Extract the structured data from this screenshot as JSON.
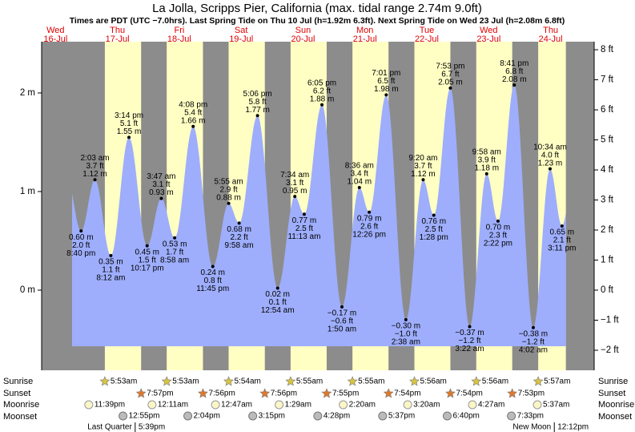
{
  "chart_data": {
    "type": "tide",
    "title": "La Jolla, Scripps Pier, California (max. tidal range 2.74m 9.0ft)",
    "subtitle": "Times are PDT (UTC −7.0hrs). Last Spring Tide on Thu 10 Jul (h=1.92m 6.3ft). Next Spring Tide on Wed 23 Jul (h=2.08m 6.8ft)",
    "ylim": [
      -0.813,
      2.52
    ],
    "yticks": [
      {
        "value": 0,
        "label": "0 m"
      },
      {
        "value": 1,
        "label": "1 m"
      },
      {
        "value": 2,
        "label": "2 m"
      }
    ],
    "y2lim": [
      -2.667,
      8.268
    ],
    "y2ticks": [
      {
        "value": -2,
        "label": "−2 ft"
      },
      {
        "value": -1,
        "label": "−1 ft"
      },
      {
        "value": 0,
        "label": "0 ft"
      },
      {
        "value": 1,
        "label": "1 ft"
      },
      {
        "value": 2,
        "label": "2 ft"
      },
      {
        "value": 3,
        "label": "3 ft"
      },
      {
        "value": 4,
        "label": "4 ft"
      },
      {
        "value": 5,
        "label": "5 ft"
      },
      {
        "value": 6,
        "label": "6 ft"
      },
      {
        "value": 7,
        "label": "7 ft"
      },
      {
        "value": 8,
        "label": "8 ft"
      }
    ],
    "row_labels": {
      "sunrise": "Sunrise",
      "sunset": "Sunset",
      "moonrise": "Moonrise",
      "moonset": "Moonset"
    },
    "colors": {
      "night": "#8c8c8c",
      "day": "#ffffc4",
      "tide": "#9eaefc"
    },
    "days": [
      {
        "weekday": "Wed",
        "date": "16-Jul",
        "moonrise": "11:39pm",
        "tides": [
          {
            "time": "8:40 pm",
            "value": 0.6,
            "value_label": "0.60 m",
            "ft_label": "2.0 ft"
          }
        ]
      },
      {
        "weekday": "Thu",
        "date": "17-Jul",
        "sunrise": "5:53am",
        "sunset": "7:57pm",
        "moonset": "12:55pm",
        "moon_phase": {
          "name": "Last Quarter",
          "time": "5:39pm"
        },
        "tides": [
          {
            "time": "2:03 am",
            "value": 1.12,
            "value_label": "1.12 m",
            "ft_label": "3.7 ft"
          },
          {
            "time": "8:12 am",
            "value": 0.35,
            "value_label": "0.35 m",
            "ft_label": "1.1 ft"
          },
          {
            "time": "3:14 pm",
            "value": 1.55,
            "value_label": "1.55 m",
            "ft_label": "5.1 ft"
          },
          {
            "time": "10:17 pm",
            "value": 0.45,
            "value_label": "0.45 m",
            "ft_label": "1.5 ft"
          }
        ]
      },
      {
        "weekday": "Fri",
        "date": "18-Jul",
        "sunrise": "5:53am",
        "sunset": "7:56pm",
        "moonrise": "12:11am",
        "moonset": "2:04pm",
        "tides": [
          {
            "time": "3:47 am",
            "value": 0.93,
            "value_label": "0.93 m",
            "ft_label": "3.1 ft"
          },
          {
            "time": "8:58 am",
            "value": 0.53,
            "value_label": "0.53 m",
            "ft_label": "1.7 ft"
          },
          {
            "time": "4:08 pm",
            "value": 1.66,
            "value_label": "1.66 m",
            "ft_label": "5.4 ft"
          },
          {
            "time": "11:45 pm",
            "value": 0.24,
            "value_label": "0.24 m",
            "ft_label": "0.8 ft"
          }
        ]
      },
      {
        "weekday": "Sat",
        "date": "19-Jul",
        "sunrise": "5:54am",
        "sunset": "7:56pm",
        "moonrise": "12:47am",
        "moonset": "3:15pm",
        "tides": [
          {
            "time": "5:55 am",
            "value": 0.88,
            "value_label": "0.88 m",
            "ft_label": "2.9 ft"
          },
          {
            "time": "9:58 am",
            "value": 0.68,
            "value_label": "0.68 m",
            "ft_label": "2.2 ft"
          },
          {
            "time": "5:06 pm",
            "value": 1.77,
            "value_label": "1.77 m",
            "ft_label": "5.8 ft"
          }
        ]
      },
      {
        "weekday": "Sun",
        "date": "20-Jul",
        "sunrise": "5:55am",
        "sunset": "7:55pm",
        "moonrise": "1:29am",
        "moonset": "4:28pm",
        "tides": [
          {
            "time": "12:54 am",
            "value": 0.02,
            "value_label": "0.02 m",
            "ft_label": "0.1 ft"
          },
          {
            "time": "7:34 am",
            "value": 0.95,
            "value_label": "0.95 m",
            "ft_label": "3.1 ft"
          },
          {
            "time": "11:13 am",
            "value": 0.77,
            "value_label": "0.77 m",
            "ft_label": "2.5 ft"
          },
          {
            "time": "6:05 pm",
            "value": 1.88,
            "value_label": "1.88 m",
            "ft_label": "6.2 ft"
          }
        ]
      },
      {
        "weekday": "Mon",
        "date": "21-Jul",
        "sunrise": "5:55am",
        "sunset": "7:54pm",
        "moonrise": "2:20am",
        "moonset": "5:37pm",
        "tides": [
          {
            "time": "1:50 am",
            "value": -0.17,
            "value_label": "−0.17 m",
            "ft_label": "−0.6 ft"
          },
          {
            "time": "8:36 am",
            "value": 1.04,
            "value_label": "1.04 m",
            "ft_label": "3.4 ft"
          },
          {
            "time": "12:26 pm",
            "value": 0.79,
            "value_label": "0.79 m",
            "ft_label": "2.6 ft"
          },
          {
            "time": "7:01 pm",
            "value": 1.98,
            "value_label": "1.98 m",
            "ft_label": "6.5 ft"
          }
        ]
      },
      {
        "weekday": "Tue",
        "date": "22-Jul",
        "sunrise": "5:56am",
        "sunset": "7:54pm",
        "moonrise": "3:20am",
        "moonset": "6:40pm",
        "tides": [
          {
            "time": "2:38 am",
            "value": -0.3,
            "value_label": "−0.30 m",
            "ft_label": "−1.0 ft"
          },
          {
            "time": "9:20 am",
            "value": 1.12,
            "value_label": "1.12 m",
            "ft_label": "3.7 ft"
          },
          {
            "time": "1:28 pm",
            "value": 0.76,
            "value_label": "0.76 m",
            "ft_label": "2.5 ft"
          },
          {
            "time": "7:53 pm",
            "value": 2.05,
            "value_label": "2.05 m",
            "ft_label": "6.7 ft"
          }
        ]
      },
      {
        "weekday": "Wed",
        "date": "23-Jul",
        "sunrise": "5:56am",
        "sunset": "7:53pm",
        "moonrise": "4:27am",
        "moonset": "7:33pm",
        "tides": [
          {
            "time": "3:22 am",
            "value": -0.37,
            "value_label": "−0.37 m",
            "ft_label": "−1.2 ft"
          },
          {
            "time": "9:58 am",
            "value": 1.18,
            "value_label": "1.18 m",
            "ft_label": "3.9 ft"
          },
          {
            "time": "2:22 pm",
            "value": 0.7,
            "value_label": "0.70 m",
            "ft_label": "2.3 ft"
          },
          {
            "time": "8:41 pm",
            "value": 2.08,
            "value_label": "2.08 m",
            "ft_label": "6.8 ft"
          }
        ]
      },
      {
        "weekday": "Thu",
        "date": "24-Jul",
        "sunrise": "5:57am",
        "moonrise": "5:37am",
        "moon_phase": {
          "name": "New Moon",
          "time": "12:12pm"
        },
        "tides": [
          {
            "time": "4:02 am",
            "value": -0.38,
            "value_label": "−0.38 m",
            "ft_label": "−1.2 ft"
          },
          {
            "time": "10:34 am",
            "value": 1.23,
            "value_label": "1.23 m",
            "ft_label": "4.0 ft"
          },
          {
            "time": "3:11 pm",
            "value": 0.65,
            "value_label": "0.65 m",
            "ft_label": "2.1 ft"
          }
        ]
      }
    ]
  }
}
